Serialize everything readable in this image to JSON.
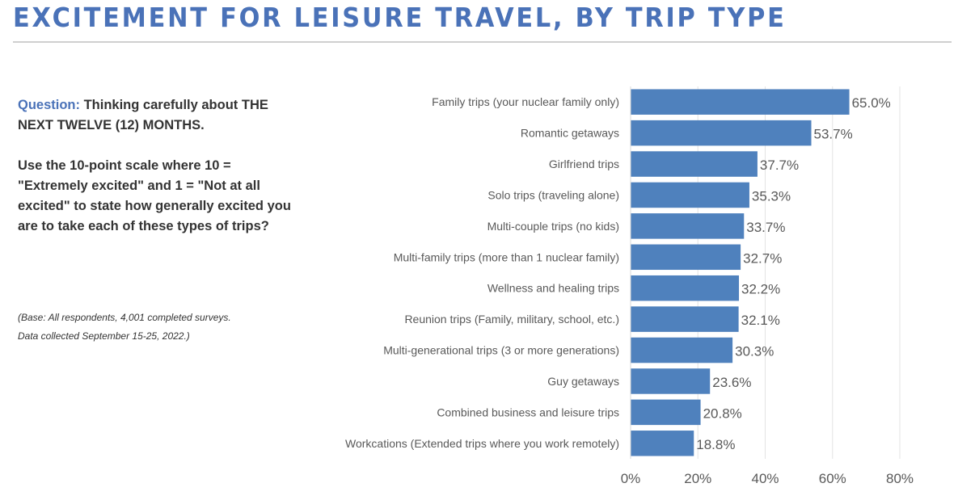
{
  "header": {
    "title": "EXCITEMENT FOR LEISURE TRAVEL, BY TRIP TYPE"
  },
  "question": {
    "label": "Question:",
    "text": "Thinking carefully about THE NEXT TWELVE (12) MONTHS.",
    "scale_text": "Use the 10-point scale where 10 = \"Extremely excited\" and 1 = \"Not at all excited\" to state how generally excited you are to take each of these types of trips?"
  },
  "base_note": {
    "line1": "(Base: All respondents, 4,001 completed surveys.",
    "line2": "Data collected September 15-25, 2022.)"
  },
  "colors": {
    "accent": "#4a72b8",
    "bar": "#4f81bd",
    "text": "#333333",
    "axis_text": "#595959"
  },
  "chart_data": {
    "type": "bar",
    "orientation": "horizontal",
    "categories": [
      "Family trips (your nuclear family only)",
      "Romantic getaways",
      "Girlfriend trips",
      "Solo trips (traveling alone)",
      "Multi-couple trips (no kids)",
      "Multi-family trips (more than 1 nuclear family)",
      "Wellness and healing trips",
      "Reunion trips (Family, military, school, etc.)",
      "Multi-generational trips (3 or more generations)",
      "Guy getaways",
      "Combined business and leisure trips",
      "Workcations (Extended trips where you work remotely)"
    ],
    "values": [
      65.0,
      53.7,
      37.7,
      35.3,
      33.7,
      32.7,
      32.2,
      32.1,
      30.3,
      23.6,
      20.8,
      18.8
    ],
    "data_labels": [
      "65.0%",
      "53.7%",
      "37.7%",
      "35.3%",
      "33.7%",
      "32.7%",
      "32.2%",
      "32.1%",
      "30.3%",
      "23.6%",
      "20.8%",
      "18.8%"
    ],
    "xlim": [
      0,
      80
    ],
    "x_ticks": [
      0,
      20,
      40,
      60,
      80
    ],
    "x_tick_labels": [
      "0%",
      "20%",
      "40%",
      "60%",
      "80%"
    ],
    "xlabel": "",
    "ylabel": "",
    "grid": true,
    "legend": "none"
  }
}
